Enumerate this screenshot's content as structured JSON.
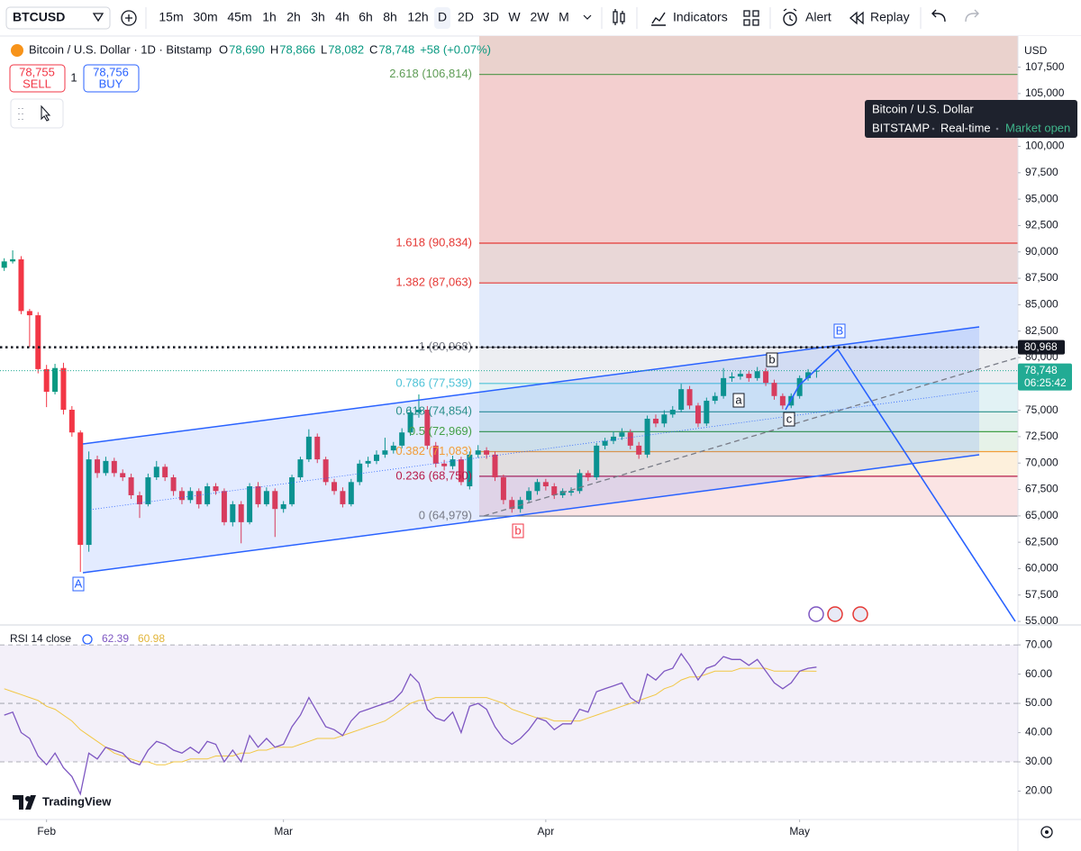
{
  "toolbar": {
    "symbol": "BTCUSD",
    "intervals": [
      "15m",
      "30m",
      "45m",
      "1h",
      "2h",
      "3h",
      "4h",
      "6h",
      "8h",
      "12h",
      "D",
      "2D",
      "3D",
      "W",
      "2W",
      "M"
    ],
    "active": "D",
    "indicators": "Indicators",
    "alert": "Alert",
    "replay": "Replay"
  },
  "header": {
    "title": "Bitcoin / U.S. Dollar · 1D · Bitstamp",
    "ohlc": [
      {
        "key": "O",
        "text": "78,690"
      },
      {
        "key": "H",
        "text": "78,866"
      },
      {
        "key": "L",
        "text": "78,082"
      },
      {
        "key": "C",
        "text": "78,748"
      }
    ],
    "change": "+58 (+0.07%)",
    "sell": {
      "price": "78,755",
      "label": "SELL"
    },
    "buy": {
      "price": "78,756",
      "label": "BUY"
    },
    "quantity": "1"
  },
  "tooltip": {
    "title": "Bitcoin / U.S. Dollar",
    "exchange": "BITSTAMP",
    "feed": "Real-time",
    "status": "Market open"
  },
  "currency": "USD",
  "logo": "TradingView",
  "chart_data": {
    "type": "candlestick",
    "up_color": "#089981",
    "down_color": "#f23645",
    "open": [
      88500,
      89100,
      89300,
      84400,
      84000,
      78900,
      76750,
      79000,
      75050,
      72900,
      62250,
      70350,
      69050,
      70200,
      69050,
      68650,
      66950,
      66100,
      68650,
      69650,
      68650,
      67350,
      66500,
      67350,
      66100,
      67800,
      67350,
      64400,
      66100,
      64400,
      67800,
      66100,
      67350,
      65650,
      66100,
      68650,
      70350,
      72500,
      70350,
      68200,
      67350,
      66100,
      68200,
      69950,
      70200,
      70800,
      71200,
      71650,
      72900,
      74800,
      75050,
      71650,
      69950,
      69700,
      70350,
      67800,
      70800,
      71200,
      70800,
      68650,
      66500,
      65650,
      66500,
      67350,
      68200,
      67800,
      66950,
      67200,
      67350,
      69050,
      68650,
      71650,
      72100,
      72500,
      72900,
      71650,
      70800,
      74200,
      73750,
      74600,
      75050,
      77000,
      75450,
      73750,
      75900,
      76350,
      78050,
      78200,
      78450,
      78050,
      78700,
      77600,
      76350,
      75450,
      76350,
      78050,
      78690
    ],
    "high": [
      89400,
      90150,
      89600,
      84600,
      84300,
      79300,
      79400,
      79500,
      75400,
      73100,
      71100,
      70700,
      70600,
      70500,
      69400,
      69000,
      67300,
      69000,
      70200,
      69900,
      68900,
      67700,
      67700,
      67600,
      68100,
      68100,
      67600,
      66400,
      66400,
      68100,
      68200,
      67700,
      67600,
      66400,
      68900,
      70600,
      73200,
      72800,
      70600,
      68500,
      67700,
      68500,
      70300,
      70600,
      71200,
      72400,
      72000,
      73300,
      75300,
      76500,
      75400,
      72000,
      70300,
      70700,
      70600,
      71100,
      71700,
      71500,
      71100,
      68900,
      66800,
      66800,
      67700,
      68500,
      68500,
      68100,
      67600,
      67700,
      69400,
      69300,
      71900,
      72400,
      73000,
      73300,
      73200,
      72000,
      74500,
      74600,
      75000,
      75400,
      77500,
      77300,
      75700,
      76200,
      76700,
      79000,
      78600,
      78800,
      78700,
      79100,
      79000,
      77900,
      76600,
      76600,
      78300,
      78900,
      78866
    ],
    "low": [
      88200,
      88900,
      84100,
      81000,
      78500,
      75300,
      76500,
      74600,
      72500,
      59700,
      61600,
      68600,
      68800,
      68700,
      68300,
      66600,
      64800,
      65900,
      68400,
      68300,
      66900,
      66100,
      66200,
      65700,
      65900,
      67000,
      64100,
      64000,
      62400,
      64200,
      65800,
      65900,
      63000,
      65300,
      65900,
      68400,
      70100,
      70000,
      67900,
      67000,
      65800,
      65900,
      67900,
      69600,
      69900,
      70500,
      70900,
      71400,
      72600,
      74300,
      71300,
      69600,
      69300,
      69400,
      67900,
      67500,
      70500,
      70400,
      68300,
      66100,
      65300,
      65300,
      66200,
      67000,
      67400,
      66600,
      66700,
      66900,
      67100,
      68300,
      68400,
      71300,
      71800,
      72200,
      71300,
      70400,
      70500,
      73400,
      73400,
      74300,
      74800,
      75100,
      73400,
      73500,
      75600,
      76100,
      77700,
      77900,
      77700,
      77800,
      77300,
      76000,
      75100,
      75200,
      76100,
      77800,
      78082
    ],
    "close": [
      89100,
      89300,
      84400,
      84000,
      78900,
      76750,
      79000,
      75050,
      72900,
      62250,
      70350,
      69050,
      70200,
      69050,
      68650,
      66950,
      66100,
      68650,
      69650,
      68650,
      67350,
      66500,
      67350,
      66100,
      67800,
      67350,
      64400,
      66100,
      64400,
      67800,
      66100,
      67350,
      65650,
      66100,
      68650,
      70350,
      72500,
      70350,
      68200,
      67350,
      66100,
      68200,
      69950,
      70200,
      70800,
      71200,
      71650,
      72900,
      74800,
      75050,
      71650,
      69950,
      69700,
      70350,
      68200,
      70800,
      71200,
      70800,
      68650,
      66500,
      65650,
      66500,
      67350,
      68200,
      67800,
      66950,
      67350,
      67350,
      69050,
      68650,
      71650,
      72100,
      72500,
      72900,
      71650,
      70800,
      74200,
      73750,
      74600,
      75050,
      77000,
      75450,
      73750,
      75900,
      76350,
      78050,
      78200,
      78450,
      78050,
      78700,
      77600,
      76350,
      75450,
      76350,
      78050,
      78600,
      78748
    ],
    "xlim": [
      -0.5,
      119.8
    ],
    "xticks": [
      {
        "value": 5,
        "label": "Feb"
      },
      {
        "value": 33,
        "label": "Mar"
      },
      {
        "value": 64,
        "label": "Apr"
      },
      {
        "value": 94,
        "label": "May"
      }
    ],
    "ylim": [
      54750,
      110450
    ],
    "yticks": [
      {
        "value": 55000,
        "label": "55,000"
      },
      {
        "value": 57500,
        "label": "57,500"
      },
      {
        "value": 60000,
        "label": "60,000"
      },
      {
        "value": 62500,
        "label": "62,500"
      },
      {
        "value": 65000,
        "label": "65,000"
      },
      {
        "value": 67500,
        "label": "67,500"
      },
      {
        "value": 70000,
        "label": "70,000"
      },
      {
        "value": 72500,
        "label": "72,500"
      },
      {
        "value": 75000,
        "label": "75,000"
      },
      {
        "value": 77500,
        "label": "77,500"
      },
      {
        "value": 80000,
        "label": "80,000"
      },
      {
        "value": 82500,
        "label": "82,500"
      },
      {
        "value": 85000,
        "label": "85,000"
      },
      {
        "value": 87500,
        "label": "87,500"
      },
      {
        "value": 90000,
        "label": "90,000"
      },
      {
        "value": 92500,
        "label": "92,500"
      },
      {
        "value": 95000,
        "label": "95,000"
      },
      {
        "value": 97500,
        "label": "97,500"
      },
      {
        "value": 100000,
        "label": "100,000"
      },
      {
        "value": 102500,
        "label": "102,500"
      },
      {
        "value": 105000,
        "label": "105,000"
      },
      {
        "value": 107500,
        "label": "107,500"
      }
    ],
    "fib_levels": [
      {
        "label": "2.618 (106,814)",
        "value": 106814,
        "color": "#5e9c55",
        "fill": "#ead2cd"
      },
      {
        "label": "1.618 (90,834)",
        "value": 90834,
        "color": "#e53935",
        "fill": "#f3cfcf"
      },
      {
        "label": "1.382 (87,063)",
        "value": 87063,
        "color": "#e53935",
        "fill": "#e9d7d7"
      },
      {
        "label": "1 (80,968)",
        "value": 80968,
        "color": "#787b86",
        "fill": "#e1eafb"
      },
      {
        "label": "0.786 (77,539)",
        "value": 77539,
        "color": "#4fc3d7",
        "fill": "#eceef2"
      },
      {
        "label": "0.618 (74,854)",
        "value": 74854,
        "color": "#2a8f8a",
        "fill": "#e2f2f5"
      },
      {
        "label": "0.5 (72,969)",
        "value": 72969,
        "color": "#43a047",
        "fill": "#e3f1ee"
      },
      {
        "label": "0.382 (71,083)",
        "value": 71083,
        "color": "#f29d38",
        "fill": "#e6f2e8"
      },
      {
        "label": "0.236 (68,750)",
        "value": 68750,
        "color": "#b71c4a",
        "fill": "#fdf0dc"
      },
      {
        "label": "0 (64,979)",
        "value": 64979,
        "color": "#787b86",
        "fill": "#fbe4e4"
      }
    ],
    "price_line": {
      "value": 80968,
      "label": "80,968"
    },
    "last_price": {
      "value": 78748,
      "label": "78,748",
      "countdown": "06:25:42"
    },
    "annotations": [
      "A",
      "B",
      "a",
      "b",
      "c",
      "b"
    ],
    "rsi": {
      "type": "line",
      "title": "RSI 14 close",
      "ylim": [
        10.3,
        76.5
      ],
      "yticks": [
        {
          "value": 70,
          "label": "70.00"
        },
        {
          "value": 60,
          "label": "60.00"
        },
        {
          "value": 50,
          "label": "50.00"
        },
        {
          "value": 40,
          "label": "40.00"
        },
        {
          "value": 30,
          "label": "30.00"
        },
        {
          "value": 20,
          "label": "20.00"
        }
      ],
      "levels": [
        70,
        50,
        30
      ],
      "series": [
        {
          "color": "#7e57c2",
          "values": [
            46,
            47,
            40,
            38,
            32,
            29,
            33,
            28,
            25,
            19,
            33,
            31,
            35,
            34,
            33,
            30,
            29,
            34,
            37,
            36,
            34,
            33,
            35,
            33,
            37,
            36,
            30,
            34,
            30,
            39,
            35,
            38,
            35,
            36,
            42,
            46,
            52,
            47,
            42,
            41,
            39,
            44,
            47,
            48,
            49,
            50,
            51,
            54,
            60,
            57,
            48,
            45,
            44,
            47,
            40,
            49,
            50,
            48,
            42,
            38,
            36,
            38,
            41,
            45,
            44,
            41,
            43,
            43,
            48,
            47,
            54,
            55,
            56,
            57,
            52,
            50,
            60,
            58,
            61,
            62,
            67,
            63,
            58,
            62,
            63,
            66,
            65,
            65,
            63,
            65,
            61,
            57,
            55,
            57,
            61,
            62,
            62.39
          ]
        },
        {
          "color": "#f2c744",
          "values": [
            55,
            54,
            53,
            52,
            51,
            49,
            48,
            46,
            44,
            41,
            39,
            37,
            35,
            33,
            32,
            31,
            30,
            30,
            29,
            29,
            30,
            30,
            31,
            31,
            31,
            32,
            32,
            32,
            33,
            33,
            34,
            34,
            35,
            35,
            35,
            36,
            37,
            38,
            38,
            38,
            39,
            40,
            41,
            42,
            43,
            44,
            46,
            48,
            50,
            51,
            51,
            52,
            52,
            52,
            52,
            52,
            52,
            52,
            51,
            50,
            48,
            47,
            46,
            45,
            45,
            44,
            44,
            44,
            44,
            45,
            46,
            47,
            48,
            49,
            50,
            51,
            52,
            53,
            55,
            56,
            58,
            59,
            59,
            60,
            61,
            61,
            61,
            62,
            62,
            62,
            62,
            61,
            61,
            61,
            61,
            61,
            60.98
          ]
        }
      ]
    }
  }
}
